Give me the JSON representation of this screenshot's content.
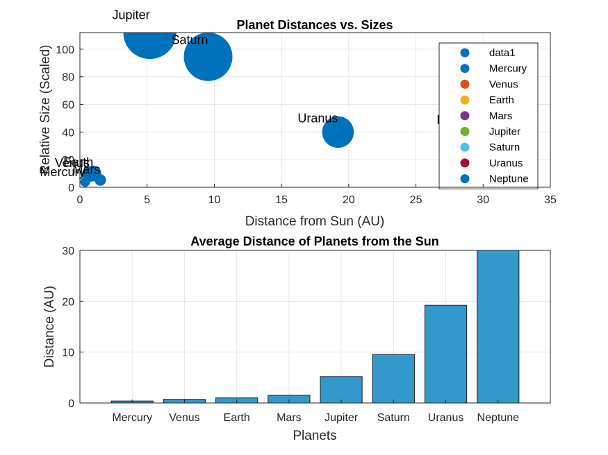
{
  "chart_data": [
    {
      "type": "scatter",
      "title": "Planet Distances vs. Sizes",
      "xlabel": "Distance from Sun (AU)",
      "ylabel": "Relative Size (Scaled)",
      "xlim": [
        0,
        35
      ],
      "ylim": [
        0,
        112
      ],
      "xticks": [
        "0",
        "5",
        "10",
        "15",
        "20",
        "25",
        "30",
        "35"
      ],
      "yticks": [
        "0",
        "20",
        "40",
        "60",
        "80",
        "100"
      ],
      "xtick_values": [
        0,
        5,
        10,
        15,
        20,
        25,
        30,
        35
      ],
      "ytick_values": [
        0,
        20,
        40,
        60,
        80,
        100
      ],
      "grid": true,
      "legend_placement": "top-right",
      "color": "#0072BD",
      "points": [
        {
          "label": "Mercury",
          "x": 0.39,
          "y": 3.8
        },
        {
          "label": "Venus",
          "x": 0.72,
          "y": 9.5
        },
        {
          "label": "Earth",
          "x": 1.0,
          "y": 10
        },
        {
          "label": "Mars",
          "x": 1.52,
          "y": 5.3
        },
        {
          "label": "Jupiter",
          "x": 5.2,
          "y": 112
        },
        {
          "label": "Saturn",
          "x": 9.54,
          "y": 94.5
        },
        {
          "label": "Uranus",
          "x": 19.2,
          "y": 40
        },
        {
          "label": "Neptune",
          "x": 30.06,
          "y": 38.8
        }
      ],
      "legend": [
        {
          "name": "data1",
          "color": "#0072BD"
        },
        {
          "name": "Mercury",
          "color": "#0072BD"
        },
        {
          "name": "Venus",
          "color": "#D95319"
        },
        {
          "name": "Earth",
          "color": "#EDB120"
        },
        {
          "name": "Mars",
          "color": "#7E2F8E"
        },
        {
          "name": "Jupiter",
          "color": "#77AC30"
        },
        {
          "name": "Saturn",
          "color": "#4DBEEE"
        },
        {
          "name": "Uranus",
          "color": "#A2142F"
        },
        {
          "name": "Neptune",
          "color": "#0072BD"
        }
      ]
    },
    {
      "type": "bar",
      "title": "Average Distance of Planets from the Sun",
      "xlabel": "Planets",
      "ylabel": "Distance (AU)",
      "ylim": [
        0,
        30
      ],
      "yticks": [
        "0",
        "10",
        "20",
        "30"
      ],
      "ytick_values": [
        0,
        10,
        20,
        30
      ],
      "grid": true,
      "color": "#3399CC",
      "categories": [
        "Mercury",
        "Venus",
        "Earth",
        "Mars",
        "Jupiter",
        "Saturn",
        "Uranus",
        "Neptune"
      ],
      "values": [
        0.39,
        0.72,
        1.0,
        1.52,
        5.2,
        9.54,
        19.2,
        30.06
      ]
    }
  ]
}
